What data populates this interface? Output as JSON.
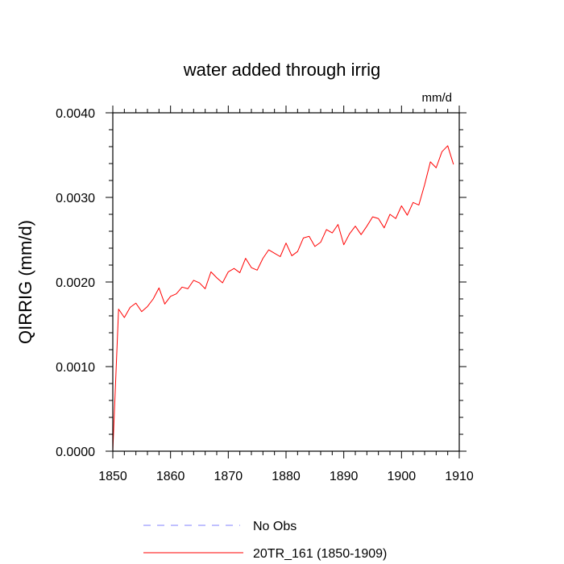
{
  "chart_data": {
    "type": "line",
    "title": "water added through irrig",
    "units": "mm/d",
    "xlabel": "",
    "ylabel": "QIRRIG  (mm/d)",
    "xlim": [
      1850,
      1910
    ],
    "ylim": [
      0.0,
      0.004
    ],
    "x_ticks": [
      1850,
      1860,
      1870,
      1880,
      1890,
      1900,
      1910
    ],
    "y_ticks": [
      0.0,
      0.001,
      0.002,
      0.003,
      0.004
    ],
    "y_tick_labels": [
      "0.0000",
      "0.0010",
      "0.0020",
      "0.0030",
      "0.0040"
    ],
    "series": [
      {
        "name": "20TR_161 (1850-1909)",
        "color": "#ff0000",
        "style": "solid",
        "x": [
          1850,
          1851,
          1852,
          1853,
          1854,
          1855,
          1856,
          1857,
          1858,
          1859,
          1860,
          1861,
          1862,
          1863,
          1864,
          1865,
          1866,
          1867,
          1868,
          1869,
          1870,
          1871,
          1872,
          1873,
          1874,
          1875,
          1876,
          1877,
          1878,
          1879,
          1880,
          1881,
          1882,
          1883,
          1884,
          1885,
          1886,
          1887,
          1888,
          1889,
          1890,
          1891,
          1892,
          1893,
          1894,
          1895,
          1896,
          1897,
          1898,
          1899,
          1900,
          1901,
          1902,
          1903,
          1904,
          1905,
          1906,
          1907,
          1908,
          1909
        ],
        "values": [
          0.0,
          0.00168,
          0.00158,
          0.0017,
          0.00175,
          0.00165,
          0.00171,
          0.0018,
          0.00193,
          0.00174,
          0.00183,
          0.00186,
          0.00194,
          0.00192,
          0.00202,
          0.00199,
          0.00192,
          0.00212,
          0.00205,
          0.00199,
          0.00212,
          0.00216,
          0.00211,
          0.00228,
          0.00217,
          0.00214,
          0.00228,
          0.00238,
          0.00234,
          0.0023,
          0.00246,
          0.00231,
          0.00236,
          0.00252,
          0.00254,
          0.00242,
          0.00247,
          0.00262,
          0.00258,
          0.00268,
          0.00244,
          0.00257,
          0.00266,
          0.00256,
          0.00266,
          0.00277,
          0.00275,
          0.00264,
          0.0028,
          0.00275,
          0.0029,
          0.00279,
          0.00294,
          0.00291,
          0.00315,
          0.00342,
          0.00335,
          0.00354,
          0.00361,
          0.00339
        ]
      }
    ],
    "legend": [
      {
        "label": "No Obs",
        "color": "#8080ff",
        "style": "dashed"
      },
      {
        "label": "20TR_161 (1850-1909)",
        "color": "#ff0000",
        "style": "solid"
      }
    ]
  }
}
